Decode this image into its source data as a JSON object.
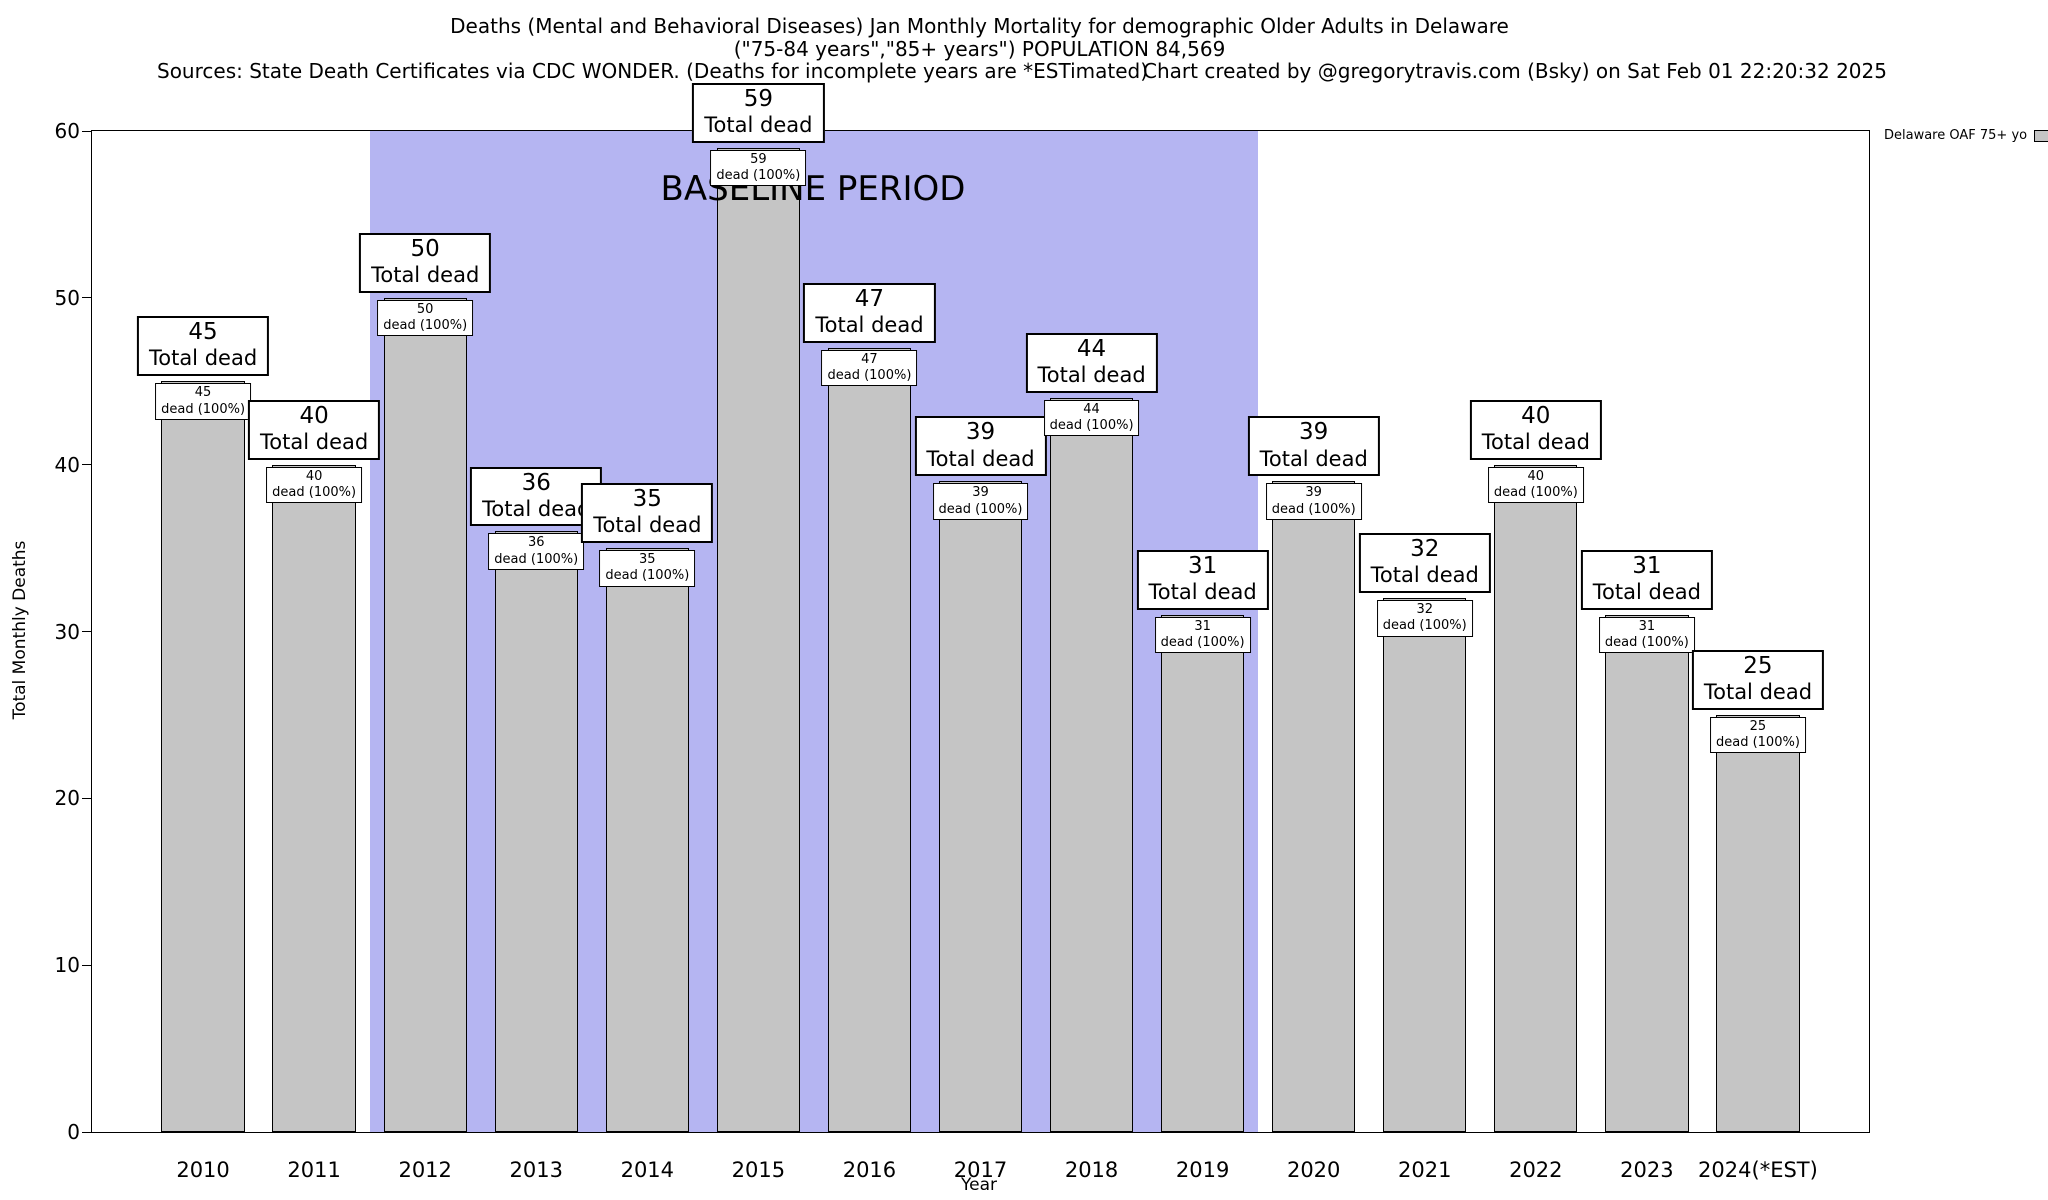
{
  "header": {
    "title_line1": "Deaths (Mental and Behavioral Diseases) Jan Monthly Mortality for demographic Older Adults in Delaware",
    "title_line2": "(\"75-84 years\",\"85+ years\") POPULATION 84,569",
    "sources": "Sources: State Death Certificates via CDC WONDER. (Deaths for incomplete years are *ESTimated)",
    "credit": "Chart created by @gregorytravis.com (Bsky) on Sat Feb 01 22:20:32 2025"
  },
  "legend": {
    "label": "Delaware OAF 75+ yo",
    "swatch_color": "#c5c5c5"
  },
  "baseline": {
    "label": "BASELINE PERIOD",
    "start_category": "2012",
    "end_category": "2019",
    "color": "#b5b5f2"
  },
  "chart_data": {
    "type": "bar",
    "title": "Deaths (Mental and Behavioral Diseases) Jan Monthly Mortality for demographic Older Adults in Delaware",
    "subtitle": "(\"75-84 years\",\"85+ years\") POPULATION 84,569",
    "xlabel": "Year",
    "ylabel": "Total Monthly Deaths",
    "ylim": [
      0,
      60
    ],
    "yticks": [
      0,
      10,
      20,
      30,
      40,
      50,
      60
    ],
    "categories": [
      "2010",
      "2011",
      "2012",
      "2013",
      "2014",
      "2015",
      "2016",
      "2017",
      "2018",
      "2019",
      "2020",
      "2021",
      "2022",
      "2023",
      "2024(*EST)"
    ],
    "values": [
      45,
      40,
      50,
      36,
      35,
      59,
      47,
      39,
      44,
      31,
      39,
      32,
      40,
      31,
      25
    ],
    "bar_color": "#c5c5c5",
    "bar_label_top": "Total dead",
    "bar_label_inner": "dead (100%)",
    "grid": false,
    "legend_position": "top-right",
    "baseline_span": [
      "2012",
      "2019"
    ]
  }
}
